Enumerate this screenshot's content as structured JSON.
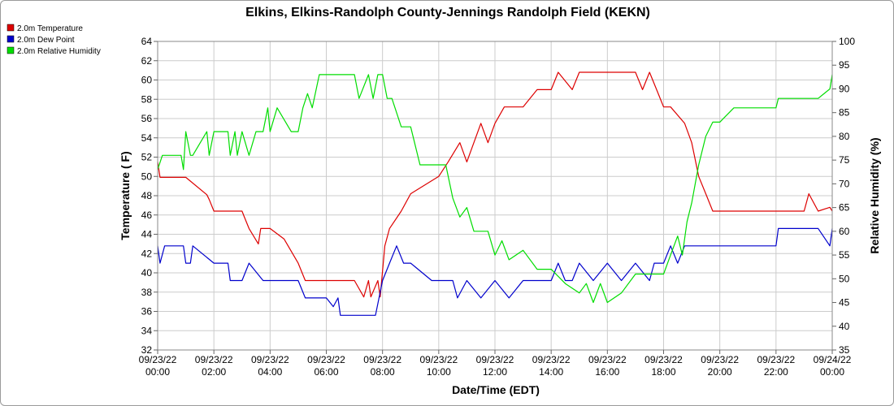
{
  "chart_data": {
    "type": "line",
    "title": "Elkins, Elkins-Randolph County-Jennings Randolph Field (KEKN)",
    "xlabel": "Date/Time (EDT)",
    "ylabel": "Temperature ( F)",
    "y2label": "Relative Humidity (%)",
    "ylim": [
      32,
      64
    ],
    "y2lim": [
      35,
      100
    ],
    "xlim": [
      "09/23/22 00:00",
      "09/24/22 00:00"
    ],
    "grid": true,
    "legend_position": "top-left",
    "x_tick_labels": [
      {
        "date": "09/23/22",
        "time": "00:00"
      },
      {
        "date": "09/23/22",
        "time": "02:00"
      },
      {
        "date": "09/23/22",
        "time": "04:00"
      },
      {
        "date": "09/23/22",
        "time": "06:00"
      },
      {
        "date": "09/23/22",
        "time": "08:00"
      },
      {
        "date": "09/23/22",
        "time": "10:00"
      },
      {
        "date": "09/23/22",
        "time": "12:00"
      },
      {
        "date": "09/23/22",
        "time": "14:00"
      },
      {
        "date": "09/23/22",
        "time": "16:00"
      },
      {
        "date": "09/23/22",
        "time": "18:00"
      },
      {
        "date": "09/23/22",
        "time": "20:00"
      },
      {
        "date": "09/23/22",
        "time": "22:00"
      },
      {
        "date": "09/24/22",
        "time": "00:00"
      }
    ],
    "y_ticks": [
      "32",
      "34",
      "36",
      "38",
      "40",
      "42",
      "44",
      "46",
      "48",
      "50",
      "52",
      "54",
      "56",
      "58",
      "60",
      "62",
      "64"
    ],
    "y2_ticks": [
      "35",
      "40",
      "45",
      "50",
      "55",
      "60",
      "65",
      "70",
      "75",
      "80",
      "85",
      "90",
      "95",
      "100"
    ],
    "series": [
      {
        "name": "2.0m Temperature",
        "color": "#dd0000",
        "axis": "left",
        "x": [
          "00:00",
          "00:05",
          "01:00",
          "01:45",
          "01:50",
          "02:00",
          "03:00",
          "03:05",
          "03:15",
          "03:35",
          "03:40",
          "04:00",
          "04:30",
          "05:00",
          "05:15",
          "06:00",
          "07:00",
          "07:20",
          "07:30",
          "07:35",
          "07:50",
          "07:55",
          "08:05",
          "08:15",
          "08:40",
          "09:00",
          "10:00",
          "10:20",
          "10:45",
          "11:00",
          "11:30",
          "11:45",
          "12:00",
          "12:20",
          "12:40",
          "13:00",
          "13:30",
          "14:00",
          "14:15",
          "14:45",
          "15:00",
          "15:15",
          "15:45",
          "16:00",
          "17:00",
          "17:15",
          "17:30",
          "17:45",
          "18:00",
          "18:15",
          "18:45",
          "19:00",
          "19:15",
          "19:30",
          "19:45",
          "20:00",
          "21:00",
          "21:30",
          "22:00",
          "23:00",
          "23:10",
          "23:30",
          "23:55",
          "24:00"
        ],
        "values": [
          51.5,
          49.9,
          49.9,
          48.1,
          47.6,
          46.4,
          46.4,
          45.8,
          44.6,
          43.0,
          44.6,
          44.6,
          43.5,
          41.0,
          39.2,
          39.2,
          39.2,
          37.5,
          39.2,
          37.5,
          39.2,
          37.5,
          42.8,
          44.6,
          46.4,
          48.2,
          50.0,
          51.5,
          53.5,
          51.5,
          55.5,
          53.5,
          55.5,
          57.2,
          57.2,
          57.2,
          59.0,
          59.0,
          60.8,
          59.0,
          60.8,
          60.8,
          60.8,
          60.8,
          60.8,
          59.0,
          60.8,
          59.0,
          57.2,
          57.2,
          55.5,
          53.5,
          50.0,
          48.2,
          46.4,
          46.4,
          46.4,
          46.4,
          46.4,
          46.4,
          48.2,
          46.4,
          46.8,
          46.4
        ]
      },
      {
        "name": "2.0m Dew Point",
        "color": "#0000cc",
        "axis": "left",
        "x": [
          "00:00",
          "00:05",
          "00:15",
          "00:55",
          "01:00",
          "01:10",
          "01:15",
          "02:00",
          "02:30",
          "02:35",
          "03:00",
          "03:15",
          "03:45",
          "03:50",
          "04:00",
          "05:00",
          "05:15",
          "06:00",
          "06:15",
          "06:25",
          "06:30",
          "06:40",
          "07:00",
          "07:45",
          "08:00",
          "08:15",
          "08:30",
          "08:45",
          "09:00",
          "09:45",
          "10:30",
          "10:40",
          "11:00",
          "11:30",
          "12:00",
          "12:30",
          "13:00",
          "13:30",
          "14:00",
          "14:15",
          "14:30",
          "14:45",
          "15:00",
          "15:30",
          "16:00",
          "16:30",
          "17:00",
          "17:30",
          "17:40",
          "17:45",
          "18:00",
          "18:15",
          "18:30",
          "18:45",
          "19:00",
          "20:00",
          "21:00",
          "22:00",
          "22:05",
          "23:00",
          "23:30",
          "23:55",
          "24:00"
        ],
        "values": [
          42.8,
          41.0,
          42.8,
          42.8,
          41.0,
          41.0,
          42.8,
          41.0,
          41.0,
          39.2,
          39.2,
          41.0,
          39.2,
          39.2,
          39.2,
          39.2,
          37.4,
          37.4,
          36.5,
          37.4,
          35.6,
          35.6,
          35.6,
          35.6,
          39.2,
          41.0,
          42.8,
          41.0,
          41.0,
          39.2,
          39.2,
          37.4,
          39.2,
          37.4,
          39.2,
          37.4,
          39.2,
          39.2,
          39.2,
          41.0,
          39.2,
          39.2,
          41.0,
          39.2,
          41.0,
          39.2,
          41.0,
          39.2,
          41.0,
          41.0,
          41.0,
          42.8,
          41.0,
          42.8,
          42.8,
          42.8,
          42.8,
          42.8,
          44.6,
          44.6,
          44.6,
          42.8,
          44.6
        ]
      },
      {
        "name": "2.0m Relative Humidity",
        "color": "#00dd00",
        "axis": "right",
        "x": [
          "00:00",
          "00:10",
          "00:50",
          "00:55",
          "01:00",
          "01:10",
          "01:15",
          "01:45",
          "01:50",
          "02:00",
          "02:30",
          "02:35",
          "02:45",
          "02:50",
          "03:00",
          "03:15",
          "03:30",
          "03:45",
          "03:55",
          "04:00",
          "04:15",
          "04:45",
          "05:00",
          "05:10",
          "05:20",
          "05:30",
          "05:45",
          "06:00",
          "06:20",
          "06:40",
          "07:00",
          "07:10",
          "07:30",
          "07:40",
          "07:50",
          "08:00",
          "08:10",
          "08:20",
          "08:40",
          "09:00",
          "09:20",
          "09:45",
          "10:15",
          "10:30",
          "10:45",
          "11:00",
          "11:15",
          "11:45",
          "12:00",
          "12:15",
          "12:30",
          "13:00",
          "13:30",
          "14:00",
          "14:30",
          "15:00",
          "15:15",
          "15:30",
          "15:45",
          "16:00",
          "16:30",
          "17:00",
          "17:30",
          "17:45",
          "18:00",
          "18:15",
          "18:30",
          "18:40",
          "18:50",
          "19:00",
          "19:15",
          "19:30",
          "19:45",
          "20:00",
          "20:30",
          "21:00",
          "22:00",
          "22:05",
          "23:00",
          "23:30",
          "23:55",
          "24:00"
        ],
        "values": [
          73,
          76,
          76,
          73,
          81,
          76,
          76,
          81,
          76,
          81,
          81,
          76,
          81,
          76,
          81,
          76,
          81,
          81,
          86,
          81,
          86,
          81,
          81,
          86,
          89,
          86,
          93,
          93,
          93,
          93,
          93,
          88,
          93,
          88,
          93,
          93,
          88,
          88,
          82,
          82,
          74,
          74,
          74,
          67,
          63,
          65,
          60,
          60,
          55,
          58,
          54,
          56,
          52,
          52,
          49,
          47,
          49,
          45,
          49,
          45,
          47,
          51,
          51,
          51,
          51,
          55,
          59,
          55,
          62,
          66,
          74,
          80,
          83,
          83,
          86,
          86,
          86,
          88,
          88,
          88,
          90,
          93
        ]
      }
    ]
  }
}
